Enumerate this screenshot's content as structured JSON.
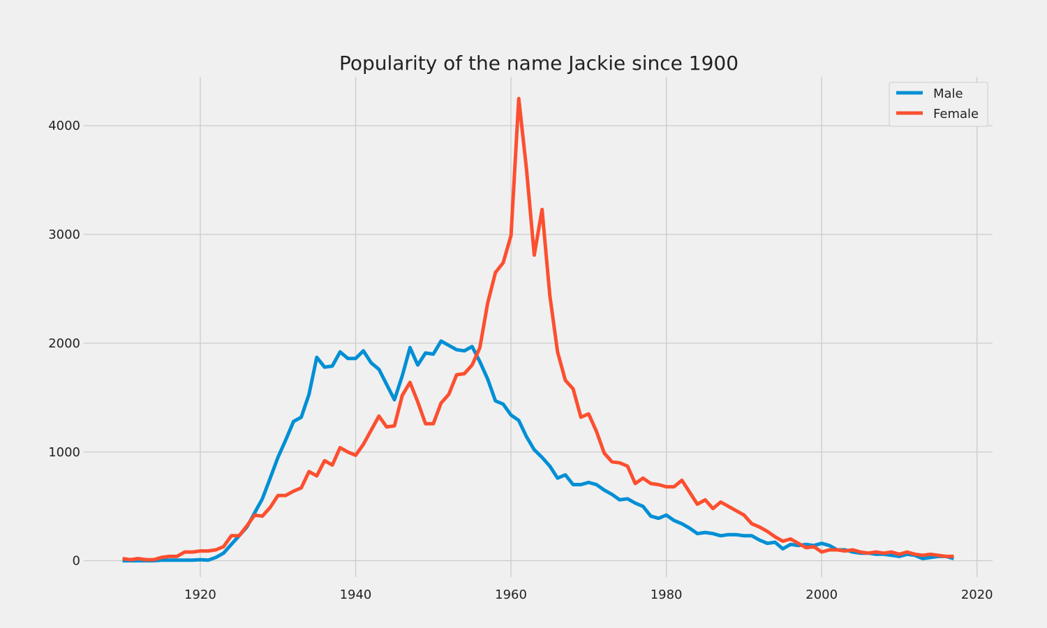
{
  "chart_data": {
    "type": "line",
    "title": "Popularity of the name Jackie since 1900",
    "xlabel": "",
    "ylabel": "",
    "xlim": [
      1905,
      2022
    ],
    "ylim": [
      -150,
      4450
    ],
    "x_ticks": [
      1920,
      1940,
      1960,
      1980,
      2000,
      2020
    ],
    "y_ticks": [
      0,
      1000,
      2000,
      3000,
      4000
    ],
    "grid": true,
    "legend_position": "top-right",
    "x": [
      1910,
      1911,
      1912,
      1913,
      1914,
      1915,
      1916,
      1917,
      1918,
      1919,
      1920,
      1921,
      1922,
      1923,
      1924,
      1925,
      1926,
      1927,
      1928,
      1929,
      1930,
      1931,
      1932,
      1933,
      1934,
      1935,
      1936,
      1937,
      1938,
      1939,
      1940,
      1941,
      1942,
      1943,
      1944,
      1945,
      1946,
      1947,
      1948,
      1949,
      1950,
      1951,
      1952,
      1953,
      1954,
      1955,
      1956,
      1957,
      1958,
      1959,
      1960,
      1961,
      1962,
      1963,
      1964,
      1965,
      1966,
      1967,
      1968,
      1969,
      1970,
      1971,
      1972,
      1973,
      1974,
      1975,
      1976,
      1977,
      1978,
      1979,
      1980,
      1981,
      1982,
      1983,
      1984,
      1985,
      1986,
      1987,
      1988,
      1989,
      1990,
      1991,
      1992,
      1993,
      1994,
      1995,
      1996,
      1997,
      1998,
      1999,
      2000,
      2001,
      2002,
      2003,
      2004,
      2005,
      2006,
      2007,
      2008,
      2009,
      2010,
      2011,
      2012,
      2013,
      2014,
      2015,
      2016,
      2017
    ],
    "series": [
      {
        "name": "Male",
        "color": "#008fd5",
        "values": [
          0,
          0,
          0,
          0,
          0,
          5,
          5,
          5,
          5,
          5,
          10,
          5,
          30,
          70,
          150,
          230,
          310,
          440,
          570,
          760,
          950,
          1110,
          1280,
          1320,
          1530,
          1870,
          1780,
          1790,
          1920,
          1860,
          1860,
          1930,
          1820,
          1760,
          1620,
          1480,
          1700,
          1960,
          1800,
          1910,
          1900,
          2020,
          1980,
          1940,
          1930,
          1970,
          1830,
          1670,
          1470,
          1440,
          1340,
          1290,
          1140,
          1020,
          950,
          870,
          760,
          790,
          700,
          700,
          720,
          700,
          650,
          610,
          560,
          570,
          530,
          500,
          410,
          390,
          420,
          370,
          340,
          300,
          250,
          260,
          250,
          230,
          240,
          240,
          230,
          230,
          190,
          160,
          170,
          110,
          150,
          140,
          150,
          140,
          160,
          140,
          100,
          100,
          80,
          70,
          70,
          60,
          60,
          50,
          40,
          60,
          50,
          20,
          30,
          40,
          40,
          20
        ]
      },
      {
        "name": "Female",
        "color": "#fc4f30",
        "values": [
          20,
          10,
          20,
          10,
          10,
          30,
          40,
          40,
          80,
          80,
          90,
          90,
          100,
          130,
          230,
          230,
          320,
          420,
          410,
          490,
          600,
          600,
          640,
          670,
          820,
          780,
          920,
          880,
          1040,
          1000,
          970,
          1070,
          1200,
          1330,
          1230,
          1240,
          1520,
          1640,
          1460,
          1260,
          1260,
          1450,
          1530,
          1710,
          1720,
          1800,
          1960,
          2370,
          2650,
          2740,
          2990,
          4250,
          3600,
          2810,
          3230,
          2440,
          1920,
          1660,
          1580,
          1320,
          1350,
          1190,
          990,
          910,
          900,
          870,
          710,
          760,
          710,
          700,
          680,
          680,
          740,
          630,
          520,
          560,
          480,
          540,
          500,
          460,
          420,
          340,
          310,
          270,
          220,
          180,
          200,
          160,
          120,
          130,
          80,
          100,
          100,
          90,
          100,
          80,
          70,
          80,
          70,
          80,
          60,
          80,
          60,
          50,
          60,
          50,
          40,
          40
        ]
      }
    ]
  }
}
